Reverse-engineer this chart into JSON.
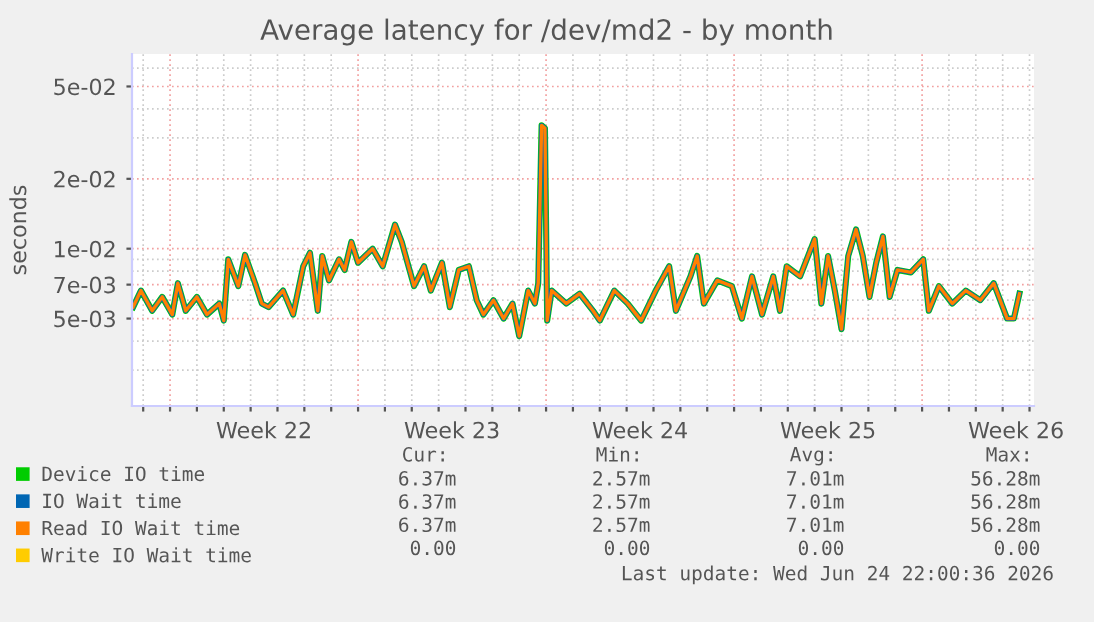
{
  "chart_data": {
    "type": "line",
    "title": "Average latency for /dev/md2 - by month",
    "ylabel": "seconds",
    "log": "y",
    "grid": true,
    "legend": "bottom",
    "marker": "none",
    "line_style": "solid",
    "xlim": [
      "2026-05-23T14:00",
      "2026-06-26T04:00"
    ],
    "ylim": [
      0.0021,
      0.069
    ],
    "yticks": [
      {
        "value": 0.05,
        "label": "5e-02"
      },
      {
        "value": 0.02,
        "label": "2e-02"
      },
      {
        "value": 0.01,
        "label": "1e-02"
      },
      {
        "value": 0.007,
        "label": "7e-03"
      },
      {
        "value": 0.005,
        "label": "5e-03"
      },
      {
        "value": 0.003,
        "label": null
      },
      {
        "value": 0.004,
        "label": null
      },
      {
        "value": 0.006,
        "label": null
      },
      {
        "value": 0.008,
        "label": null
      },
      {
        "value": 0.009,
        "label": null
      },
      {
        "value": 0.03,
        "label": null
      },
      {
        "value": 0.04,
        "label": null
      },
      {
        "value": 0.06,
        "label": null
      }
    ],
    "xticks": [
      {
        "value": "2026-05-28T12:00",
        "label": "Week 22"
      },
      {
        "value": "2026-06-04T12:00",
        "label": "Week 23"
      },
      {
        "value": "2026-06-11T12:00",
        "label": "Week 24"
      },
      {
        "value": "2026-06-18T12:00",
        "label": "Week 25"
      },
      {
        "value": "2026-06-25T12:00",
        "label": "Week 26"
      },
      {
        "value": "2026-05-24",
        "label": null
      },
      {
        "value": "2026-05-25",
        "label": null
      },
      {
        "value": "2026-05-26",
        "label": null
      },
      {
        "value": "2026-05-27",
        "label": null
      },
      {
        "value": "2026-05-28",
        "label": null
      },
      {
        "value": "2026-05-29",
        "label": null
      },
      {
        "value": "2026-05-30",
        "label": null
      },
      {
        "value": "2026-05-31",
        "label": null
      },
      {
        "value": "2026-06-01",
        "label": null
      },
      {
        "value": "2026-06-02",
        "label": null
      },
      {
        "value": "2026-06-03",
        "label": null
      },
      {
        "value": "2026-06-04",
        "label": null
      },
      {
        "value": "2026-06-05",
        "label": null
      },
      {
        "value": "2026-06-06",
        "label": null
      },
      {
        "value": "2026-06-07",
        "label": null
      },
      {
        "value": "2026-06-08",
        "label": null
      },
      {
        "value": "2026-06-09",
        "label": null
      },
      {
        "value": "2026-06-10",
        "label": null
      },
      {
        "value": "2026-06-11",
        "label": null
      },
      {
        "value": "2026-06-12",
        "label": null
      },
      {
        "value": "2026-06-13",
        "label": null
      },
      {
        "value": "2026-06-14",
        "label": null
      },
      {
        "value": "2026-06-15",
        "label": null
      },
      {
        "value": "2026-06-16",
        "label": null
      },
      {
        "value": "2026-06-17",
        "label": null
      },
      {
        "value": "2026-06-18",
        "label": null
      },
      {
        "value": "2026-06-19",
        "label": null
      },
      {
        "value": "2026-06-20",
        "label": null
      },
      {
        "value": "2026-06-21",
        "label": null
      },
      {
        "value": "2026-06-22",
        "label": null
      },
      {
        "value": "2026-06-23",
        "label": null
      },
      {
        "value": "2026-06-24",
        "label": null
      },
      {
        "value": "2026-06-25",
        "label": null
      },
      {
        "value": "2026-06-26",
        "label": null
      }
    ],
    "x": [
      "2026-05-23T15:00",
      "2026-05-23T22:00",
      "2026-05-24T08:00",
      "2026-05-24T17:00",
      "2026-05-25T02:00",
      "2026-05-25T07:00",
      "2026-05-25T14:00",
      "2026-05-26T00:00",
      "2026-05-26T09:00",
      "2026-05-26T20:00",
      "2026-05-27T00:00",
      "2026-05-27T04:00",
      "2026-05-27T13:00",
      "2026-05-27T19:00",
      "2026-05-28T04:00",
      "2026-05-28T10:00",
      "2026-05-28T16:00",
      "2026-05-29T05:00",
      "2026-05-29T14:00",
      "2026-05-29T23:00",
      "2026-05-30T05:00",
      "2026-05-30T12:00",
      "2026-05-30T16:00",
      "2026-05-30T22:00",
      "2026-05-31T07:00",
      "2026-05-31T12:00",
      "2026-05-31T18:00",
      "2026-06-01T00:00",
      "2026-06-01T13:00",
      "2026-06-01T22:00",
      "2026-06-02T09:00",
      "2026-06-02T15:00",
      "2026-06-03T02:00",
      "2026-06-03T11:00",
      "2026-06-03T17:00",
      "2026-06-04T03:00",
      "2026-06-04T10:00",
      "2026-06-04T18:00",
      "2026-06-05T03:00",
      "2026-06-05T10:00",
      "2026-06-05T16:00",
      "2026-06-06T01:00",
      "2026-06-06T10:00",
      "2026-06-06T18:00",
      "2026-06-07T00:00",
      "2026-06-07T08:00",
      "2026-06-07T14:00",
      "2026-06-07T17:00",
      "2026-06-07T20:00",
      "2026-06-07T23:00",
      "2026-06-08T01:00",
      "2026-06-08T05:00",
      "2026-06-08T18:00",
      "2026-06-09T06:00",
      "2026-06-09T18:00",
      "2026-06-10T00:00",
      "2026-06-10T13:00",
      "2026-06-11T01:00",
      "2026-06-11T13:00",
      "2026-06-12T02:00",
      "2026-06-12T14:00",
      "2026-06-12T20:00",
      "2026-06-13T09:00",
      "2026-06-13T15:00",
      "2026-06-13T21:00",
      "2026-06-14T09:00",
      "2026-06-14T22:00",
      "2026-06-15T07:00",
      "2026-06-15T16:00",
      "2026-06-16T01:00",
      "2026-06-16T11:00",
      "2026-06-16T17:00",
      "2026-06-16T23:00",
      "2026-06-17T11:00",
      "2026-06-18T00:00",
      "2026-06-18T06:00",
      "2026-06-18T12:00",
      "2026-06-18T18:00",
      "2026-06-19T00:00",
      "2026-06-19T06:00",
      "2026-06-19T13:00",
      "2026-06-19T19:00",
      "2026-06-20T01:00",
      "2026-06-20T07:00",
      "2026-06-20T13:00",
      "2026-06-20T19:00",
      "2026-06-21T02:00",
      "2026-06-21T14:00",
      "2026-06-22T01:00",
      "2026-06-22T06:00",
      "2026-06-22T15:00",
      "2026-06-23T03:00",
      "2026-06-23T15:00",
      "2026-06-24T04:00",
      "2026-06-24T16:00",
      "2026-06-25T04:00",
      "2026-06-25T10:00",
      "2026-06-25T15:00"
    ],
    "series": [
      {
        "name": "Device IO time",
        "color": "#00cc00",
        "values": [
          0.0056,
          0.0066,
          0.0054,
          0.0062,
          0.0052,
          0.0071,
          0.0054,
          0.0062,
          0.0052,
          0.0058,
          0.0049,
          0.009,
          0.0069,
          0.0094,
          0.0071,
          0.0058,
          0.0056,
          0.0066,
          0.0052,
          0.0084,
          0.0096,
          0.0054,
          0.0093,
          0.0073,
          0.009,
          0.0081,
          0.0107,
          0.0087,
          0.01,
          0.0084,
          0.0127,
          0.0107,
          0.0069,
          0.0084,
          0.0066,
          0.0087,
          0.0056,
          0.0081,
          0.0084,
          0.006,
          0.0052,
          0.006,
          0.005,
          0.0058,
          0.0042,
          0.0066,
          0.0058,
          0.0071,
          0.034,
          0.033,
          0.0049,
          0.0066,
          0.0058,
          0.0064,
          0.0054,
          0.0049,
          0.0066,
          0.0058,
          0.0049,
          0.0066,
          0.0084,
          0.0054,
          0.0076,
          0.0093,
          0.0058,
          0.0073,
          0.0069,
          0.005,
          0.0076,
          0.0052,
          0.0076,
          0.0054,
          0.0084,
          0.0076,
          0.011,
          0.0058,
          0.0093,
          0.0066,
          0.0045,
          0.0093,
          0.0121,
          0.0093,
          0.0062,
          0.0087,
          0.0113,
          0.0062,
          0.0081,
          0.0079,
          0.009,
          0.0054,
          0.0069,
          0.0058,
          0.0066,
          0.006,
          0.0071,
          0.005,
          0.005,
          0.0064
        ]
      },
      {
        "name": "IO Wait time",
        "color": "#0066b3",
        "values": [
          0.0056,
          0.0066,
          0.0054,
          0.0062,
          0.0052,
          0.0071,
          0.0054,
          0.0062,
          0.0052,
          0.0058,
          0.0049,
          0.009,
          0.0069,
          0.0094,
          0.0071,
          0.0058,
          0.0056,
          0.0066,
          0.0052,
          0.0084,
          0.0096,
          0.0054,
          0.0093,
          0.0073,
          0.009,
          0.0081,
          0.0107,
          0.0087,
          0.01,
          0.0084,
          0.0127,
          0.0107,
          0.0069,
          0.0084,
          0.0066,
          0.0087,
          0.0056,
          0.0081,
          0.0084,
          0.006,
          0.0052,
          0.006,
          0.005,
          0.0058,
          0.0042,
          0.0066,
          0.0058,
          0.0071,
          0.034,
          0.033,
          0.0049,
          0.0066,
          0.0058,
          0.0064,
          0.0054,
          0.0049,
          0.0066,
          0.0058,
          0.0049,
          0.0066,
          0.0084,
          0.0054,
          0.0076,
          0.0093,
          0.0058,
          0.0073,
          0.0069,
          0.005,
          0.0076,
          0.0052,
          0.0076,
          0.0054,
          0.0084,
          0.0076,
          0.011,
          0.0058,
          0.0093,
          0.0066,
          0.0045,
          0.0093,
          0.0121,
          0.0093,
          0.0062,
          0.0087,
          0.0113,
          0.0062,
          0.0081,
          0.0079,
          0.009,
          0.0054,
          0.0069,
          0.0058,
          0.0066,
          0.006,
          0.0071,
          0.005,
          0.005,
          0.0064
        ]
      },
      {
        "name": "Read IO Wait time",
        "color": "#ff8000",
        "values": [
          0.0056,
          0.0066,
          0.0054,
          0.0062,
          0.0052,
          0.0071,
          0.0054,
          0.0062,
          0.0052,
          0.0058,
          0.0049,
          0.009,
          0.0069,
          0.0094,
          0.0071,
          0.0058,
          0.0056,
          0.0066,
          0.0052,
          0.0084,
          0.0096,
          0.0054,
          0.0093,
          0.0073,
          0.009,
          0.0081,
          0.0107,
          0.0087,
          0.01,
          0.0084,
          0.0127,
          0.0107,
          0.0069,
          0.0084,
          0.0066,
          0.0087,
          0.0056,
          0.0081,
          0.0084,
          0.006,
          0.0052,
          0.006,
          0.005,
          0.0058,
          0.0042,
          0.0066,
          0.0058,
          0.0071,
          0.034,
          0.033,
          0.0049,
          0.0066,
          0.0058,
          0.0064,
          0.0054,
          0.0049,
          0.0066,
          0.0058,
          0.0049,
          0.0066,
          0.0084,
          0.0054,
          0.0076,
          0.0093,
          0.0058,
          0.0073,
          0.0069,
          0.005,
          0.0076,
          0.0052,
          0.0076,
          0.0054,
          0.0084,
          0.0076,
          0.011,
          0.0058,
          0.0093,
          0.0066,
          0.0045,
          0.0093,
          0.0121,
          0.0093,
          0.0062,
          0.0087,
          0.0113,
          0.0062,
          0.0081,
          0.0079,
          0.009,
          0.0054,
          0.0069,
          0.0058,
          0.0066,
          0.006,
          0.0071,
          0.005,
          0.005,
          0.0064
        ]
      },
      {
        "name": "Write IO Wait time",
        "color": "#ffcc00",
        "values": [
          null,
          null,
          null,
          null,
          null,
          null,
          null,
          null,
          null,
          null,
          null,
          null,
          null,
          null,
          null,
          null,
          null,
          null,
          null,
          null,
          null,
          null,
          null,
          null,
          null,
          null,
          null,
          null,
          null,
          null,
          null,
          null,
          null,
          null,
          null,
          null,
          null,
          null,
          null,
          null,
          null,
          null,
          null,
          null,
          null,
          null,
          null,
          null,
          null,
          null,
          null,
          null,
          null,
          null,
          null,
          null,
          null,
          null,
          null,
          null,
          null,
          null,
          null,
          null,
          null,
          null,
          null,
          null,
          null,
          null,
          null,
          null,
          null,
          null,
          null,
          null,
          null,
          null,
          null,
          null,
          null,
          null,
          null,
          null,
          null,
          null,
          null,
          null,
          null,
          null,
          null,
          null,
          null,
          null,
          null,
          null,
          null,
          null
        ]
      }
    ],
    "annotations": [
      "Cur:",
      "Min:",
      "Avg:",
      "Max:",
      "6.37m",
      "2.57m",
      "7.01m",
      "56.28m",
      "6.37m",
      "2.57m",
      "7.01m",
      "56.28m",
      "6.37m",
      "2.57m",
      "7.01m",
      "56.28m",
      "0.00",
      "0.00",
      "0.00",
      "0.00",
      "Last update: Wed Jun 24 22:00:36 2026"
    ]
  }
}
